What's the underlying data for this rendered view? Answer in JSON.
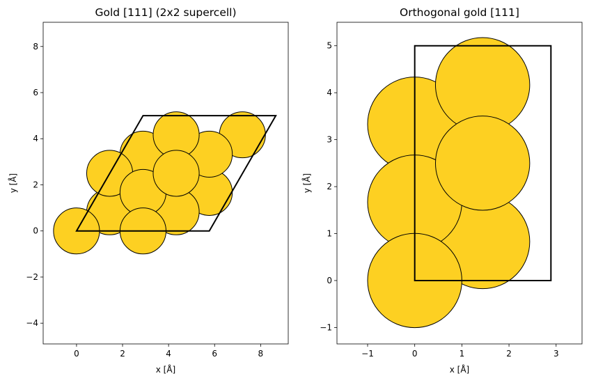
{
  "chart_data": [
    {
      "type": "scatter",
      "title": "Gold [111] (2x2 supercell)",
      "xlabel": "x [Å]",
      "ylabel": "y [Å]",
      "xlim": [
        -1.45,
        9.2
      ],
      "ylim": [
        -4.9,
        9.05
      ],
      "xticks": [
        0,
        2,
        4,
        6,
        8
      ],
      "xtick_labels": [
        "0",
        "2",
        "4",
        "6",
        "8"
      ],
      "yticks": [
        -4,
        -2,
        0,
        2,
        4,
        6,
        8
      ],
      "ytick_labels": [
        "−4",
        "−2",
        "0",
        "2",
        "4",
        "6",
        "8"
      ],
      "atom_radius": 1.0,
      "atom_color": "#fdd022",
      "atoms": [
        {
          "x": 4.33,
          "y": 3.33
        },
        {
          "x": 7.21,
          "y": 4.17
        },
        {
          "x": 5.77,
          "y": 1.67
        },
        {
          "x": 1.44,
          "y": 0.83
        },
        {
          "x": 2.89,
          "y": 3.33
        },
        {
          "x": 4.33,
          "y": 0.83
        },
        {
          "x": 5.77,
          "y": 3.33
        },
        {
          "x": 4.33,
          "y": 4.17
        },
        {
          "x": 1.44,
          "y": 2.5
        },
        {
          "x": 2.89,
          "y": 1.67
        },
        {
          "x": 4.33,
          "y": 2.5
        },
        {
          "x": 0.0,
          "y": 0.0
        },
        {
          "x": 2.89,
          "y": 0.0
        }
      ],
      "cell": [
        [
          0,
          0
        ],
        [
          5.77,
          0
        ],
        [
          8.66,
          5.0
        ],
        [
          2.89,
          5.0
        ]
      ]
    },
    {
      "type": "scatter",
      "title": "Orthogonal gold [111]",
      "xlabel": "x [Å]",
      "ylabel": "y [Å]",
      "xlim": [
        -1.65,
        3.55
      ],
      "ylim": [
        -1.35,
        5.5
      ],
      "xticks": [
        -1,
        0,
        1,
        2,
        3
      ],
      "xtick_labels": [
        "−1",
        "0",
        "1",
        "2",
        "3"
      ],
      "yticks": [
        -1,
        0,
        1,
        2,
        3,
        4,
        5
      ],
      "ytick_labels": [
        "−1",
        "0",
        "1",
        "2",
        "3",
        "4",
        "5"
      ],
      "atom_radius": 1.0,
      "atom_color": "#fdd022",
      "atoms": [
        {
          "x": 1.44,
          "y": 0.83
        },
        {
          "x": 0.0,
          "y": 3.33
        },
        {
          "x": 1.44,
          "y": 4.17
        },
        {
          "x": 0.0,
          "y": 1.67
        },
        {
          "x": 1.44,
          "y": 2.5
        },
        {
          "x": 0.0,
          "y": 0.0
        }
      ],
      "cell": [
        [
          0,
          0
        ],
        [
          2.89,
          0
        ],
        [
          2.89,
          5.0
        ],
        [
          0,
          5.0
        ]
      ]
    }
  ]
}
